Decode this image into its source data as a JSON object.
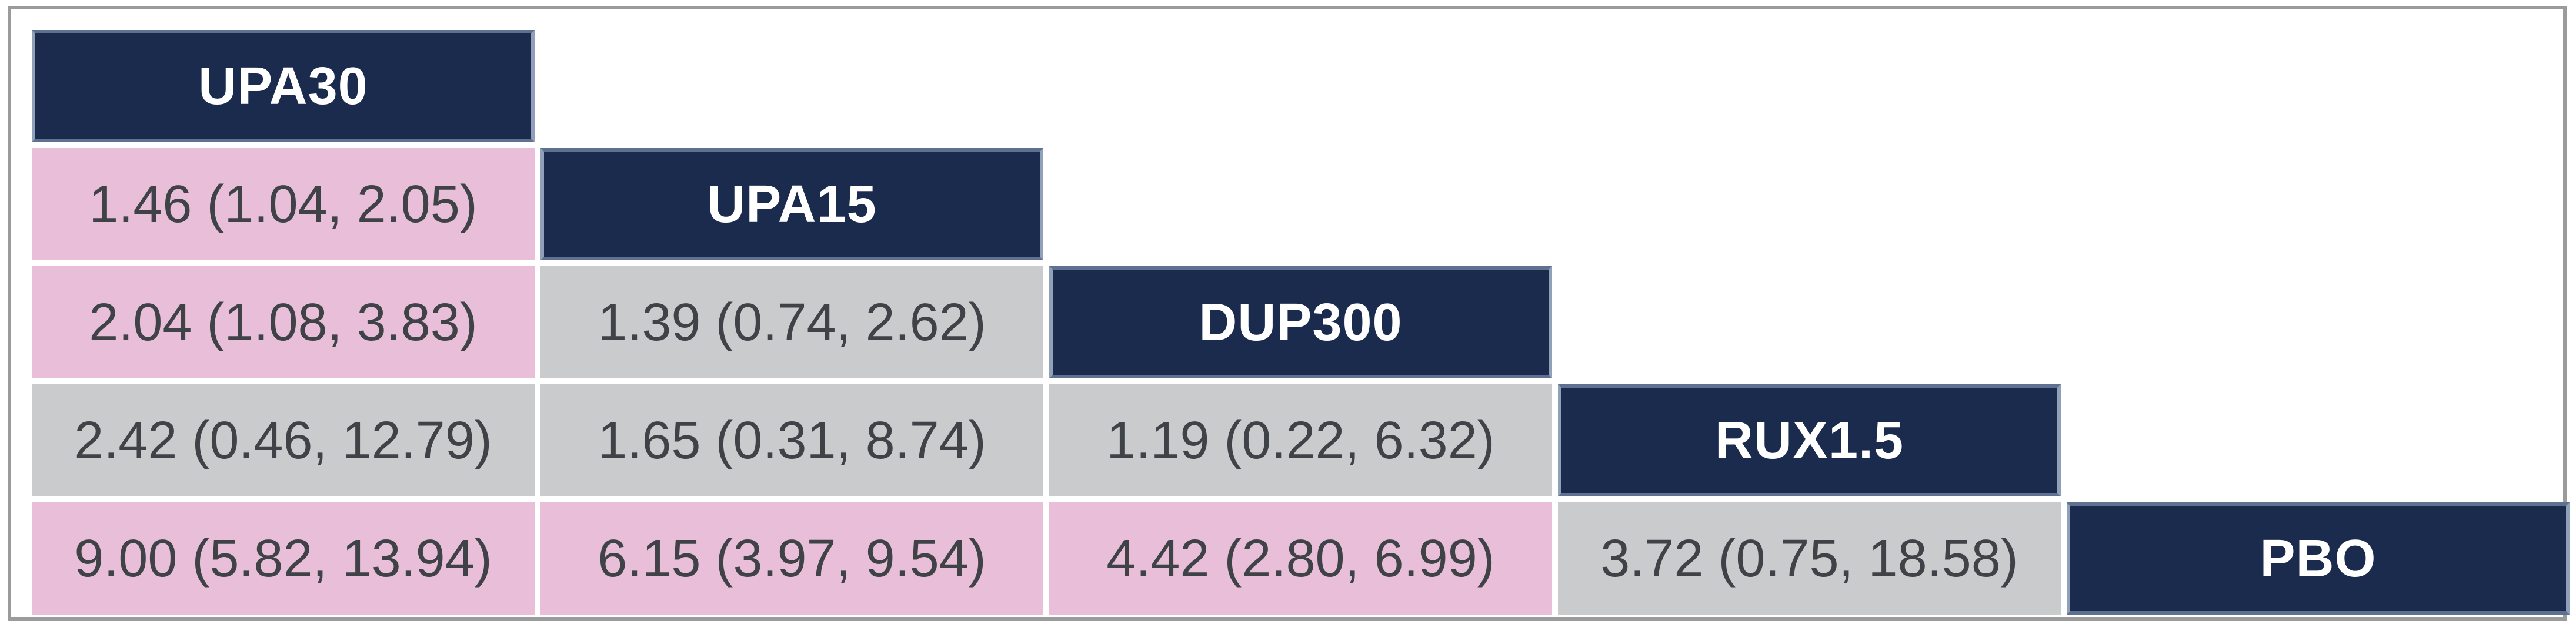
{
  "colors": {
    "header_bg": "#1b2b4e",
    "header_edge": "#5e7191",
    "header_text": "#ffffff",
    "significant_bg": "#e8bed8",
    "nonsignificant_bg": "#cacbcd",
    "cell_text": "#3f4347",
    "frame_border": "#9b9b9b",
    "background": "#ffffff"
  },
  "chart_data": {
    "type": "table",
    "subtype": "network-meta-analysis league table (lower triangle)",
    "diagonal_treatments": [
      "UPA30",
      "UPA15",
      "DUP300",
      "RUX1.5",
      "PBO"
    ],
    "cell_format": "estimate (lower CI, upper CI)",
    "legend_hint": "pink cells = interval excludes 1, gray cells = interval includes 1",
    "comparisons": [
      {
        "row_treatment": "UPA15",
        "column_treatment": "UPA30",
        "text": "1.46 (1.04, 2.05)",
        "estimate": 1.46,
        "ci_lower": 1.04,
        "ci_upper": 2.05,
        "highlighted_pink": true
      },
      {
        "row_treatment": "DUP300",
        "column_treatment": "UPA30",
        "text": "2.04 (1.08, 3.83)",
        "estimate": 2.04,
        "ci_lower": 1.08,
        "ci_upper": 3.83,
        "highlighted_pink": true
      },
      {
        "row_treatment": "DUP300",
        "column_treatment": "UPA15",
        "text": "1.39 (0.74, 2.62)",
        "estimate": 1.39,
        "ci_lower": 0.74,
        "ci_upper": 2.62,
        "highlighted_pink": false
      },
      {
        "row_treatment": "RUX1.5",
        "column_treatment": "UPA30",
        "text": "2.42 (0.46, 12.79)",
        "estimate": 2.42,
        "ci_lower": 0.46,
        "ci_upper": 12.79,
        "highlighted_pink": false
      },
      {
        "row_treatment": "RUX1.5",
        "column_treatment": "UPA15",
        "text": "1.65 (0.31, 8.74)",
        "estimate": 1.65,
        "ci_lower": 0.31,
        "ci_upper": 8.74,
        "highlighted_pink": false
      },
      {
        "row_treatment": "RUX1.5",
        "column_treatment": "DUP300",
        "text": "1.19 (0.22, 6.32)",
        "estimate": 1.19,
        "ci_lower": 0.22,
        "ci_upper": 6.32,
        "highlighted_pink": false
      },
      {
        "row_treatment": "PBO",
        "column_treatment": "UPA30",
        "text": "9.00 (5.82, 13.94)",
        "estimate": 9.0,
        "ci_lower": 5.82,
        "ci_upper": 13.94,
        "highlighted_pink": true
      },
      {
        "row_treatment": "PBO",
        "column_treatment": "UPA15",
        "text": "6.15 (3.97, 9.54)",
        "estimate": 6.15,
        "ci_lower": 3.97,
        "ci_upper": 9.54,
        "highlighted_pink": true
      },
      {
        "row_treatment": "PBO",
        "column_treatment": "DUP300",
        "text": "4.42 (2.80, 6.99)",
        "estimate": 4.42,
        "ci_lower": 2.8,
        "ci_upper": 6.99,
        "highlighted_pink": true
      },
      {
        "row_treatment": "PBO",
        "column_treatment": "RUX1.5",
        "text": "3.72 (0.75, 18.58)",
        "estimate": 3.72,
        "ci_lower": 0.75,
        "ci_upper": 18.58,
        "highlighted_pink": false
      }
    ]
  },
  "table": {
    "rows": [
      {
        "cells": [
          {
            "text": "UPA30"
          }
        ]
      },
      {
        "cells": [
          {
            "text": "1.46 (1.04, 2.05)"
          },
          {
            "text": "UPA15"
          }
        ]
      },
      {
        "cells": [
          {
            "text": "2.04 (1.08, 3.83)"
          },
          {
            "text": "1.39 (0.74, 2.62)"
          },
          {
            "text": "DUP300"
          }
        ]
      },
      {
        "cells": [
          {
            "text": "2.42 (0.46, 12.79)"
          },
          {
            "text": "1.65 (0.31, 8.74)"
          },
          {
            "text": "1.19 (0.22, 6.32)"
          },
          {
            "text": "RUX1.5"
          }
        ]
      },
      {
        "cells": [
          {
            "text": "9.00 (5.82, 13.94)"
          },
          {
            "text": "6.15 (3.97, 9.54)"
          },
          {
            "text": "4.42 (2.80, 6.99)"
          },
          {
            "text": "3.72 (0.75, 18.58)"
          },
          {
            "text": "PBO"
          }
        ]
      }
    ]
  }
}
